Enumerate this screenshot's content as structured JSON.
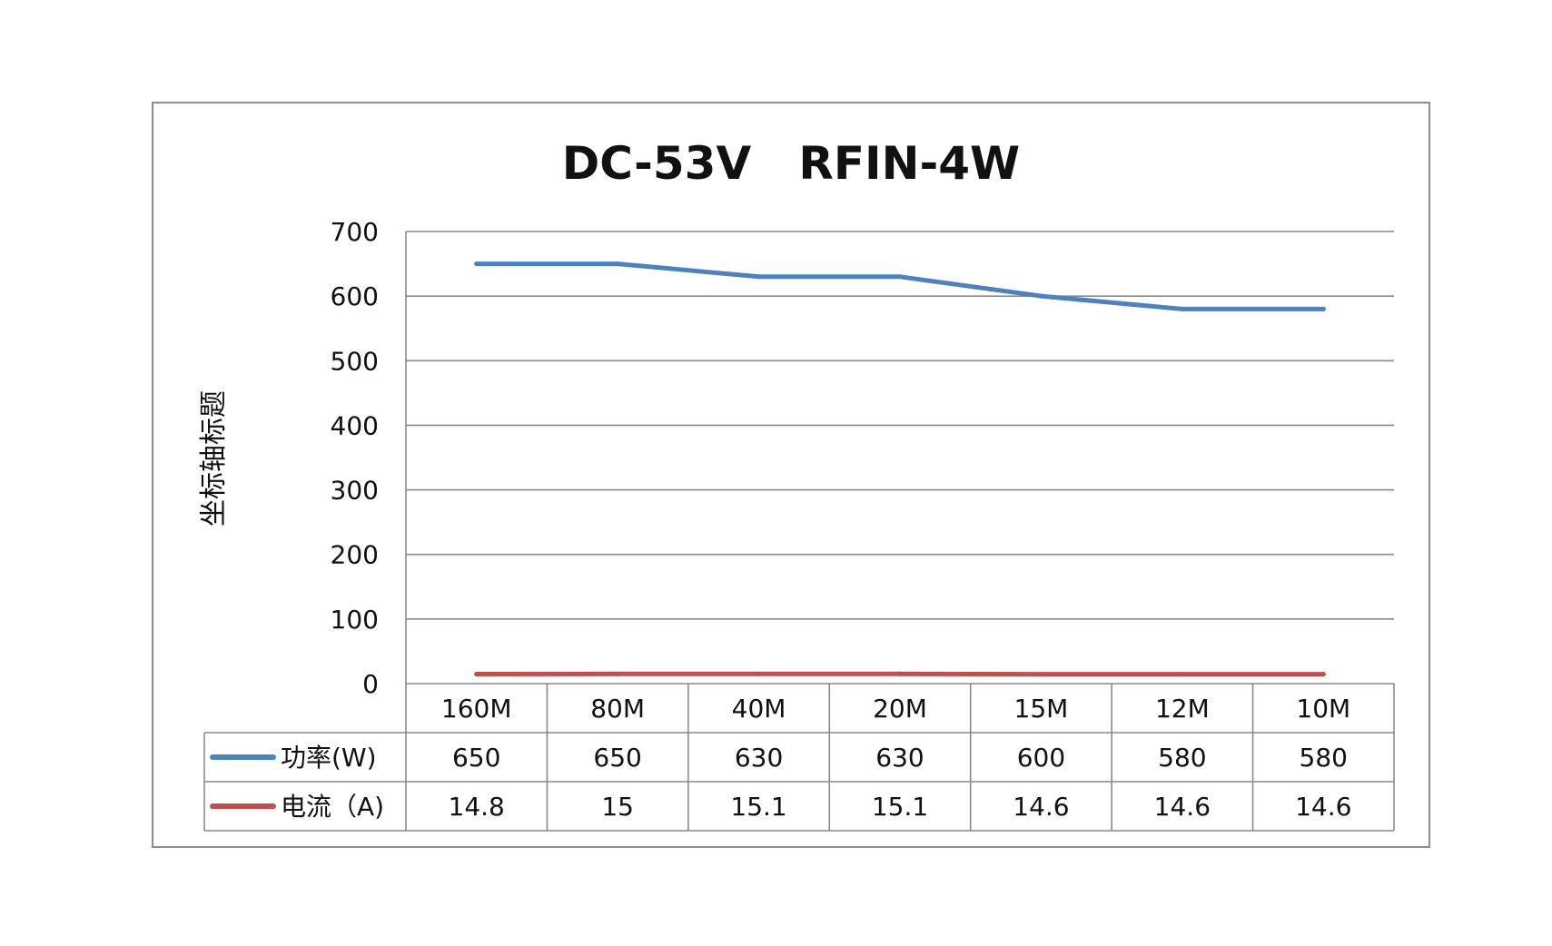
{
  "chart_data": {
    "type": "line",
    "title": "DC-53V   RFIN-4W",
    "ylabel": "坐标轴标题",
    "xlabel": "",
    "ylim": [
      0,
      700
    ],
    "yticks": [
      0,
      100,
      200,
      300,
      400,
      500,
      600,
      700
    ],
    "grid": true,
    "legend": "data-table",
    "categories": [
      "160M",
      "80M",
      "40M",
      "20M",
      "15M",
      "12M",
      "10M"
    ],
    "series": [
      {
        "name": "功率(W)",
        "color": "#4F81BD",
        "values": [
          650,
          650,
          630,
          630,
          600,
          580,
          580
        ],
        "labels": [
          "650",
          "650",
          "630",
          "630",
          "600",
          "580",
          "580"
        ]
      },
      {
        "name": "电流（A)",
        "color": "#C0504D",
        "values": [
          14.8,
          15,
          15.1,
          15.1,
          14.6,
          14.6,
          14.6
        ],
        "labels": [
          "14.8",
          "15",
          "15.1",
          "15.1",
          "14.6",
          "14.6",
          "14.6"
        ]
      }
    ]
  }
}
